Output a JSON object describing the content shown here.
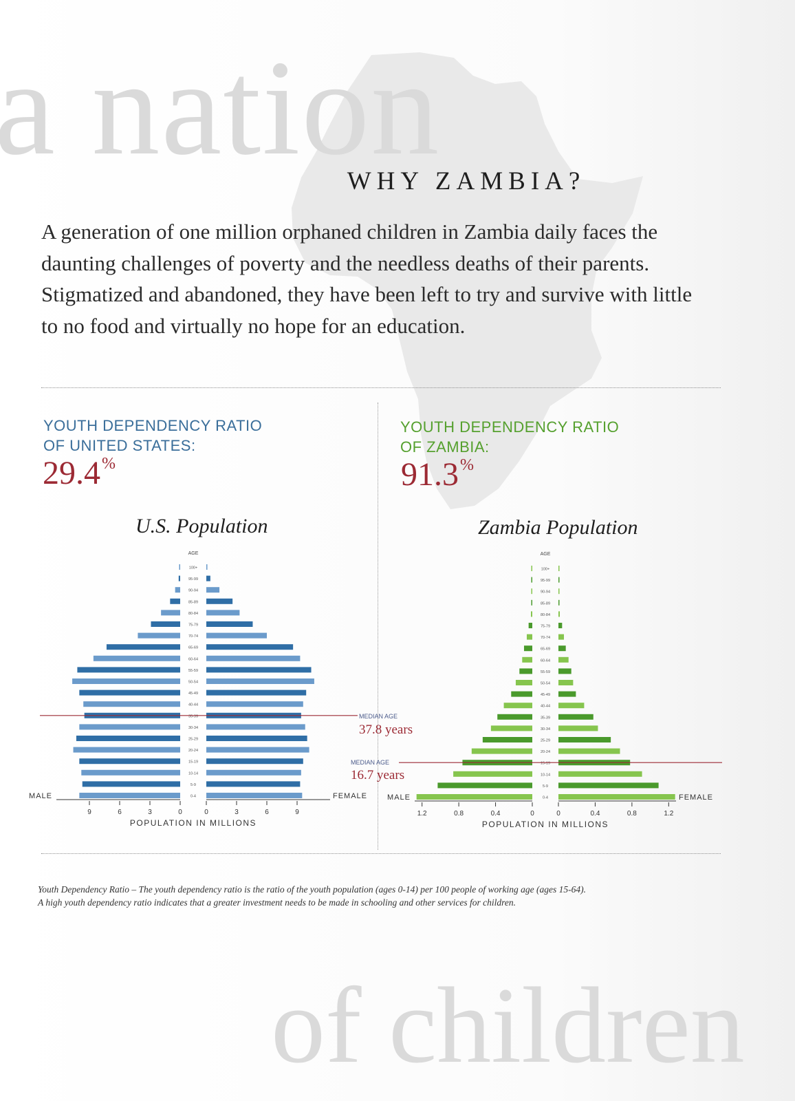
{
  "watermark": {
    "top": "a nation",
    "bottom": "of children"
  },
  "heading": "WHY ZAMBIA?",
  "intro": "A generation of one million orphaned children in Zambia daily faces the daunting challenges of poverty and the needless deaths of their parents. Stigmatized and abandoned, they have been left to try and survive with little to no food and virtually no hope for an education.",
  "us": {
    "ratio_label": "YOUTH DEPENDENCY RATIO\nOF UNITED STATES:",
    "ratio_value": "29.4",
    "ratio_unit": "%",
    "chart_title": "U.S. Population"
  },
  "zambia": {
    "ratio_label": "YOUTH DEPENDENCY RATIO\nOF ZAMBIA:",
    "ratio_value": "91.3",
    "ratio_unit": "%",
    "chart_title": "Zambia Population"
  },
  "colors": {
    "us_dark": "#2f6ea6",
    "us_light": "#6b9bcb",
    "zm_dark": "#4a9a2c",
    "zm_light": "#86c54e",
    "us_label": "#3a6e9a",
    "zm_label": "#55a02e",
    "accent": "#9c2a34"
  },
  "chart_data": [
    {
      "type": "bar",
      "title": "U.S. Population",
      "orientation": "horizontal-pyramid",
      "age_label": "AGE",
      "left_label": "MALE",
      "right_label": "FEMALE",
      "xlabel": "POPULATION IN MILLIONS",
      "xlim": [
        0,
        12
      ],
      "ticks": [
        0,
        3,
        6,
        9
      ],
      "categories": [
        "100+",
        "95-99",
        "90-94",
        "85-89",
        "80-84",
        "75-79",
        "70-74",
        "65-69",
        "60-64",
        "55-59",
        "50-54",
        "45-49",
        "40-44",
        "35-39",
        "30-34",
        "25-29",
        "20-24",
        "15-19",
        "10-14",
        "5-9",
        "0-4"
      ],
      "series": [
        {
          "name": "MALE",
          "values": [
            0.05,
            0.15,
            0.5,
            1.0,
            1.9,
            2.9,
            4.2,
            7.3,
            8.6,
            10.2,
            10.7,
            10.0,
            9.6,
            9.5,
            10.0,
            10.3,
            10.6,
            10.0,
            9.8,
            9.7,
            10.0
          ]
        },
        {
          "name": "FEMALE",
          "values": [
            0.1,
            0.4,
            1.3,
            2.6,
            3.3,
            4.6,
            6.0,
            8.6,
            9.3,
            10.4,
            10.7,
            9.9,
            9.6,
            9.4,
            9.8,
            10.0,
            10.2,
            9.6,
            9.4,
            9.3,
            9.5
          ]
        }
      ],
      "median": {
        "label": "MEDIAN AGE",
        "value": "37.8 years",
        "category": "35-39"
      }
    },
    {
      "type": "bar",
      "title": "Zambia Population",
      "orientation": "horizontal-pyramid",
      "age_label": "AGE",
      "left_label": "MALE",
      "right_label": "FEMALE",
      "xlabel": "POPULATION IN MILLIONS",
      "xlim": [
        0,
        1.25
      ],
      "ticks": [
        0,
        0.4,
        0.8,
        1.2
      ],
      "categories": [
        "100+",
        "95-99",
        "90-94",
        "85-89",
        "80-84",
        "75-79",
        "70-74",
        "65-69",
        "60-64",
        "55-59",
        "50-54",
        "45-49",
        "40-44",
        "35-39",
        "30-34",
        "25-29",
        "20-24",
        "15-19",
        "10-14",
        "5-9",
        "0-4"
      ],
      "series": [
        {
          "name": "MALE",
          "values": [
            0.01,
            0.01,
            0.01,
            0.01,
            0.015,
            0.04,
            0.06,
            0.09,
            0.11,
            0.14,
            0.18,
            0.23,
            0.31,
            0.38,
            0.45,
            0.54,
            0.66,
            0.76,
            0.86,
            1.03,
            1.26
          ]
        },
        {
          "name": "FEMALE",
          "values": [
            0.01,
            0.01,
            0.01,
            0.01,
            0.015,
            0.04,
            0.06,
            0.08,
            0.11,
            0.14,
            0.16,
            0.19,
            0.28,
            0.38,
            0.43,
            0.57,
            0.67,
            0.78,
            0.91,
            1.09,
            1.27
          ]
        }
      ],
      "median": {
        "label": "MEDIAN AGE",
        "value": "16.7 years",
        "category": "15-19"
      }
    }
  ],
  "footnote": {
    "line1": "Youth Dependency Ratio – The youth dependency ratio is the ratio of the youth population (ages 0-14) per 100 people of working age (ages 15-64).",
    "line2": "A high youth dependency ratio indicates that a greater investment needs to be made in schooling and other services for children."
  }
}
